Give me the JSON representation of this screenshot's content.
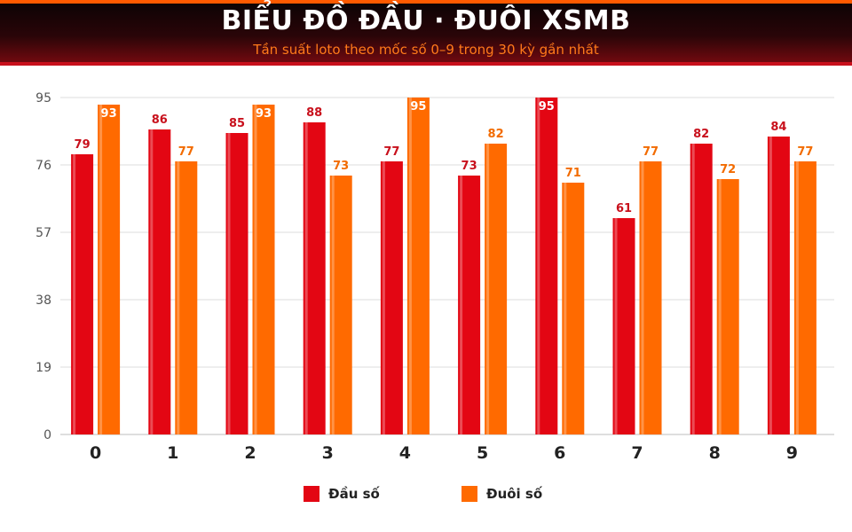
{
  "header": {
    "title": "BIỂU ĐỒ ĐẦU · ĐUÔI XSMB",
    "subtitle": "Tần suất loto theo mốc số 0–9 trong 30 kỳ gần nhất"
  },
  "colors": {
    "dau": "#e30613",
    "duoi": "#ff6a00",
    "dau_label": "#c8101c",
    "duoi_label": "#f26b00"
  },
  "chart_data": {
    "type": "bar",
    "title": "BIỂU ĐỒ ĐẦU · ĐUÔI XSMB",
    "subtitle": "Tần suất loto theo mốc số 0–9 trong 30 kỳ gần nhất",
    "categories": [
      "0",
      "1",
      "2",
      "3",
      "4",
      "5",
      "6",
      "7",
      "8",
      "9"
    ],
    "series": [
      {
        "name": "Đầu số",
        "values": [
          79,
          86,
          85,
          88,
          77,
          73,
          95,
          61,
          82,
          84
        ]
      },
      {
        "name": "Đuôi số",
        "values": [
          93,
          77,
          93,
          73,
          95,
          82,
          71,
          77,
          72,
          77
        ]
      }
    ],
    "ylim": [
      0,
      95
    ],
    "yticks": [
      0,
      19,
      38,
      57,
      76,
      95
    ],
    "grid": true,
    "legend_position": "bottom"
  }
}
